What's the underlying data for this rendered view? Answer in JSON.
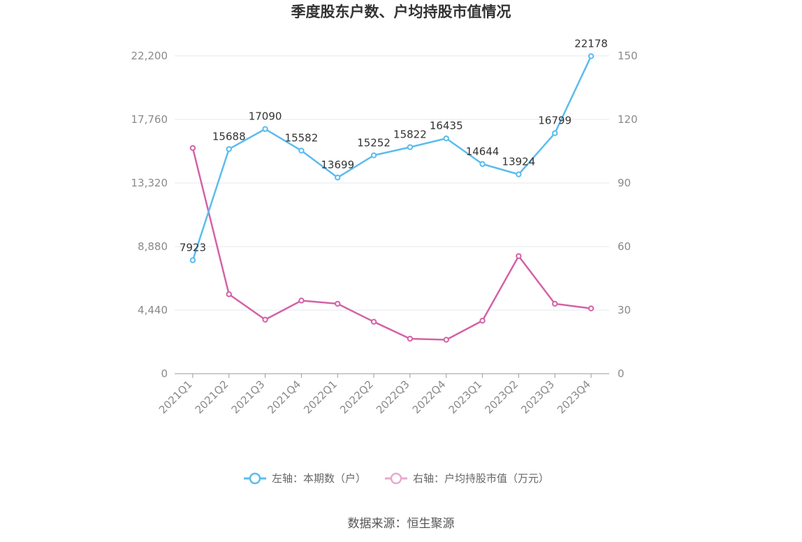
{
  "chart_data": {
    "type": "line",
    "title": "季度股东户数、户均持股市值情况",
    "categories": [
      "2021Q1",
      "2021Q2",
      "2021Q3",
      "2021Q4",
      "2022Q1",
      "2022Q2",
      "2022Q3",
      "2022Q4",
      "2023Q1",
      "2023Q2",
      "2023Q3",
      "2023Q4"
    ],
    "y_left": {
      "ticks": [
        "0",
        "4,440",
        "8,880",
        "13,320",
        "17,760",
        "22,200"
      ],
      "ylim": [
        0,
        22200
      ]
    },
    "y_right": {
      "ticks": [
        "0",
        "30",
        "60",
        "90",
        "120",
        "150"
      ],
      "ylim": [
        0,
        150
      ]
    },
    "grid": true,
    "legend_position": "bottom",
    "series": [
      {
        "name": "左轴：本期数（户）",
        "axis": "left",
        "color": "#5bbcee",
        "values": [
          7923,
          15688,
          17090,
          15582,
          13699,
          15252,
          15822,
          16435,
          14644,
          13924,
          16799,
          22178
        ],
        "labels": [
          "7923",
          "15688",
          "17090",
          "15582",
          "13699",
          "15252",
          "15822",
          "16435",
          "14644",
          "13924",
          "16799",
          "22178"
        ]
      },
      {
        "name": "右轴：户均持股市值（万元）",
        "axis": "right",
        "color": "#d462a6",
        "values": [
          106.5,
          37.5,
          25.5,
          34.5,
          33.0,
          24.5,
          16.5,
          16.0,
          25.0,
          55.5,
          33.0,
          30.8
        ]
      }
    ]
  },
  "source": "数据来源：恒生聚源"
}
